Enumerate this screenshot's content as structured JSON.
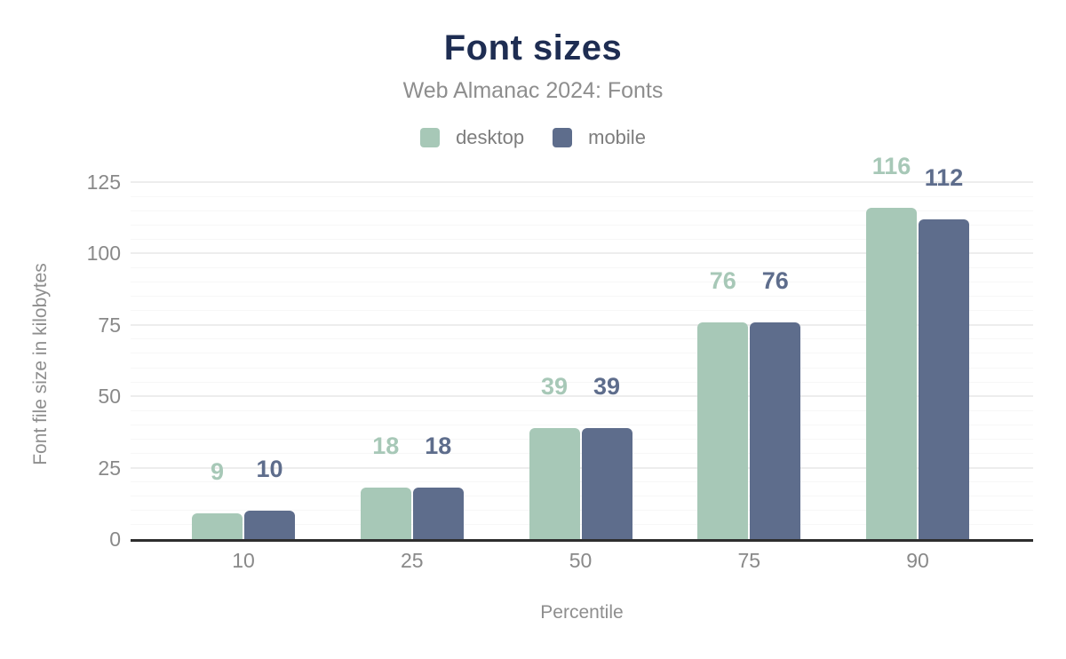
{
  "chart_data": {
    "type": "bar",
    "title": "Font sizes",
    "subtitle": "Web Almanac 2024: Fonts",
    "xlabel": "Percentile",
    "ylabel": "Font file size in kilobytes",
    "categories": [
      "10",
      "25",
      "50",
      "75",
      "90"
    ],
    "series": [
      {
        "name": "desktop",
        "color": "#a7c8b7",
        "values": [
          9,
          18,
          39,
          76,
          116
        ]
      },
      {
        "name": "mobile",
        "color": "#5e6d8c",
        "values": [
          10,
          18,
          39,
          76,
          112
        ]
      }
    ],
    "ylim": [
      0,
      125
    ],
    "yticks": [
      0,
      25,
      50,
      75,
      100,
      125
    ],
    "minor_tick_step": 5,
    "grid": "horizontal",
    "legend_position": "top",
    "value_labels": true
  },
  "colors": {
    "title": "#1e2d52",
    "subtitle": "#8e8e8e",
    "tick_label": "#898989",
    "axis_title": "#8e8e8e",
    "legend_label": "#7d7d7d",
    "axis_line": "#2e2e2e",
    "grid_major": "#ededed",
    "grid_minor": "#f7f7f7"
  }
}
